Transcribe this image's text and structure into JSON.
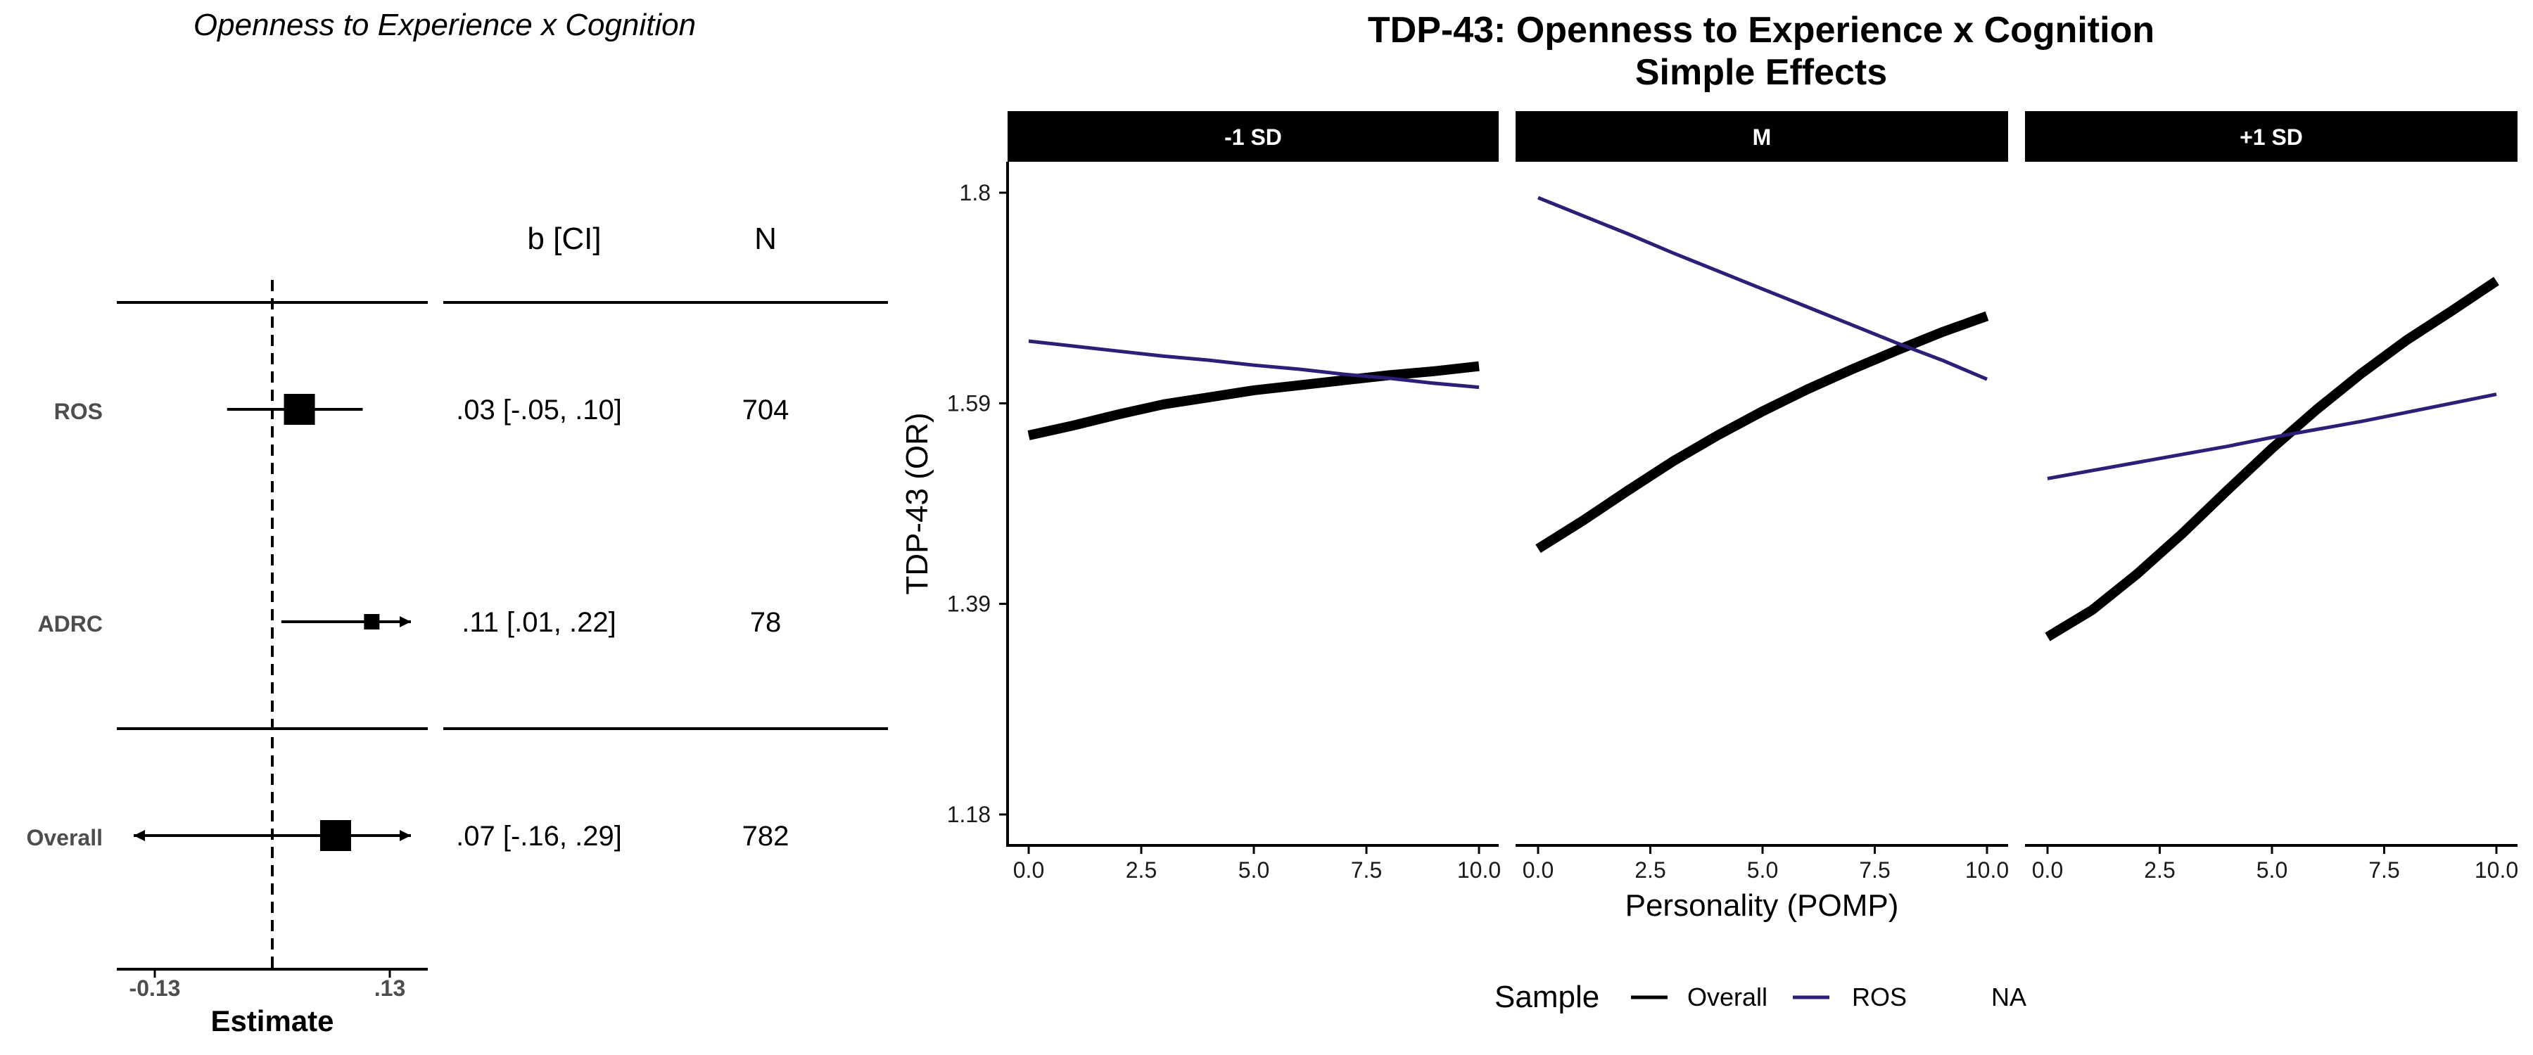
{
  "forest": {
    "title": "Openness to Experience x Cognition",
    "header_estimate": "b [CI]",
    "header_n": "N",
    "xlabel": "Estimate",
    "ticks": [
      "-0.13",
      ".13"
    ],
    "tick_values": [
      -0.13,
      0.13
    ],
    "rows": [
      {
        "label": "ROS",
        "estimate_text": ".03 [-.05, .10]",
        "n": "704"
      },
      {
        "label": "ADRC",
        "estimate_text": ".11 [.01, .22]",
        "n": "78"
      },
      {
        "label": "Overall",
        "estimate_text": ".07 [-.16, .29]",
        "n": "782"
      }
    ]
  },
  "effects": {
    "title_line1": "TDP-43: Openness to Experience x Cognition",
    "title_line2": "Simple Effects",
    "panels": [
      "-1 SD",
      "M",
      "+1 SD"
    ],
    "ylabel": "TDP-43 (OR)",
    "xlabel": "Personality (POMP)",
    "yticks": [
      "1.18",
      "1.39",
      "1.59",
      "1.8"
    ],
    "xticks": [
      "0.0",
      "2.5",
      "5.0",
      "7.5",
      "10.0"
    ],
    "legend": {
      "title": "Sample",
      "items": [
        "Overall",
        "ROS",
        "NA"
      ]
    }
  },
  "colors": {
    "overall": "#000000",
    "ros": "#2b1f78",
    "strip": "#000000",
    "strip_text": "#ffffff"
  },
  "chart_data": [
    {
      "type": "scatter",
      "title": "Openness to Experience x Cognition",
      "xlabel": "Estimate",
      "categories": [
        "ROS",
        "ADRC",
        "Overall"
      ],
      "series": [
        {
          "name": "b [CI]",
          "values": [
            0.03,
            0.11,
            0.07
          ],
          "ci_low": [
            -0.05,
            0.01,
            -0.16
          ],
          "ci_high": [
            0.1,
            0.22,
            0.29
          ],
          "n": [
            704,
            78,
            782
          ]
        }
      ],
      "xlim": [
        -0.13,
        0.13
      ],
      "reference_line": 0,
      "arrows": {
        "ADRC": [
          "right"
        ],
        "Overall": [
          "left",
          "right"
        ]
      }
    },
    {
      "type": "line",
      "title": "TDP-43: Openness to Experience x Cognition Simple Effects",
      "xlabel": "Personality (POMP)",
      "ylabel": "TDP-43 (OR)",
      "x": [
        0,
        1,
        2,
        3,
        4,
        5,
        6,
        7,
        8,
        9,
        10
      ],
      "xlim": [
        0,
        10
      ],
      "ylim": [
        1.18,
        1.8
      ],
      "grid": false,
      "legend": "bottom",
      "facets": [
        {
          "name": "-1 SD",
          "series": [
            {
              "name": "Overall",
              "values": [
                1.558,
                1.568,
                1.579,
                1.589,
                1.596,
                1.603,
                1.608,
                1.613,
                1.618,
                1.622,
                1.627
              ]
            },
            {
              "name": "ROS",
              "values": [
                1.652,
                1.647,
                1.642,
                1.637,
                1.633,
                1.628,
                1.624,
                1.619,
                1.615,
                1.61,
                1.606
              ]
            }
          ]
        },
        {
          "name": "M",
          "series": [
            {
              "name": "Overall",
              "values": [
                1.445,
                1.473,
                1.503,
                1.532,
                1.558,
                1.582,
                1.604,
                1.624,
                1.643,
                1.661,
                1.677
              ]
            },
            {
              "name": "ROS",
              "values": [
                1.795,
                1.777,
                1.759,
                1.74,
                1.722,
                1.704,
                1.686,
                1.668,
                1.65,
                1.633,
                1.614
              ]
            }
          ]
        },
        {
          "name": "+1 SD",
          "series": [
            {
              "name": "Overall",
              "values": [
                1.357,
                1.384,
                1.42,
                1.46,
                1.503,
                1.545,
                1.584,
                1.62,
                1.653,
                1.682,
                1.712
              ]
            },
            {
              "name": "ROS",
              "values": [
                1.515,
                1.523,
                1.531,
                1.539,
                1.547,
                1.556,
                1.564,
                1.572,
                1.581,
                1.59,
                1.599
              ]
            }
          ]
        }
      ]
    }
  ]
}
